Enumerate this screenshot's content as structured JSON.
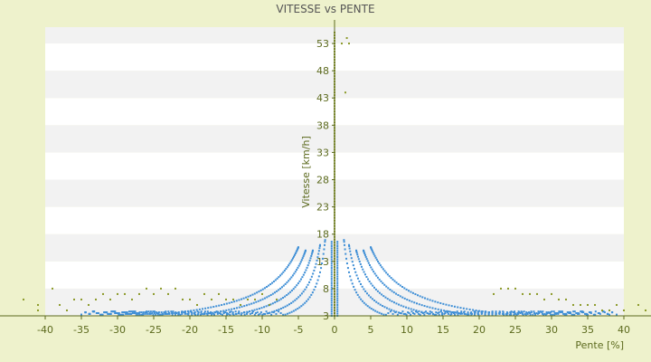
{
  "chart_data": {
    "type": "scatter",
    "title": "VITESSE vs PENTE",
    "xlabel": "Pente [%]",
    "ylabel": "Vitesse [km/h]",
    "xlim": [
      -40,
      40
    ],
    "ylim": [
      3,
      56
    ],
    "x_ticks": [
      "-40",
      "-35",
      "-30",
      "-25",
      "-20",
      "-15",
      "-10",
      "-5",
      "0",
      "5",
      "10",
      "15",
      "20",
      "25",
      "30",
      "35",
      "40"
    ],
    "y_ticks": [
      "3",
      "8",
      "13",
      "18",
      "23",
      "28",
      "33",
      "38",
      "43",
      "48",
      "53"
    ],
    "grid": "horizontal bands",
    "legend": "none",
    "colors": {
      "background": "#eef2cc",
      "plot_band_light": "#ffffff",
      "plot_band_dark": "#f2f2f2",
      "axis": "#5c6a1e",
      "series_blue": "#3f8fd6",
      "series_olive": "#8c9a2a"
    },
    "series": [
      {
        "color": "#3f8fd6",
        "curves": [
          {
            "k": 22,
            "xmin": 1.3,
            "xmax": 35,
            "sign": 1
          },
          {
            "k": 32,
            "xmin": 2.0,
            "xmax": 38,
            "sign": 1
          },
          {
            "k": 45,
            "xmin": 3.0,
            "xmax": 39,
            "sign": 1
          },
          {
            "k": 60,
            "xmin": 4.0,
            "xmax": 39,
            "sign": 1
          },
          {
            "k": 78,
            "xmin": 5.0,
            "xmax": 39,
            "sign": 1
          },
          {
            "k": 22,
            "xmin": 1.3,
            "xmax": 35,
            "sign": -1
          },
          {
            "k": 32,
            "xmin": 2.0,
            "xmax": 35,
            "sign": -1
          },
          {
            "k": 45,
            "xmin": 3.0,
            "xmax": 35,
            "sign": -1
          },
          {
            "k": 60,
            "xmin": 4.0,
            "xmax": 35,
            "sign": -1
          },
          {
            "k": 78,
            "xmin": 5.0,
            "xmax": 35,
            "sign": -1
          }
        ]
      },
      {
        "color": "#8c9a2a",
        "points": [
          [
            -43,
            6
          ],
          [
            -41,
            5
          ],
          [
            -41,
            4
          ],
          [
            -39,
            8
          ],
          [
            -38,
            5
          ],
          [
            -37,
            4
          ],
          [
            -36,
            6
          ],
          [
            -35,
            6
          ],
          [
            -34,
            5
          ],
          [
            -33,
            6
          ],
          [
            -32,
            7
          ],
          [
            -31,
            6
          ],
          [
            -30,
            7
          ],
          [
            -29,
            7
          ],
          [
            -28,
            6
          ],
          [
            -27,
            7
          ],
          [
            -26,
            8
          ],
          [
            -25,
            7
          ],
          [
            -24,
            8
          ],
          [
            -23,
            7
          ],
          [
            -22,
            8
          ],
          [
            -21,
            6
          ],
          [
            -20,
            6
          ],
          [
            -19,
            5
          ],
          [
            -18,
            7
          ],
          [
            -17,
            6
          ],
          [
            -16,
            7
          ],
          [
            -15,
            6
          ],
          [
            -14,
            6
          ],
          [
            -13,
            5
          ],
          [
            -12,
            6
          ],
          [
            -11,
            6
          ],
          [
            -10,
            7
          ],
          [
            -9,
            5
          ],
          [
            -8,
            6
          ],
          [
            1,
            53
          ],
          [
            1.5,
            44
          ],
          [
            1.7,
            54
          ],
          [
            2,
            53
          ],
          [
            22,
            7
          ],
          [
            23,
            8
          ],
          [
            24,
            8
          ],
          [
            25,
            8
          ],
          [
            26,
            7
          ],
          [
            27,
            7
          ],
          [
            28,
            7
          ],
          [
            29,
            6
          ],
          [
            30,
            7
          ],
          [
            31,
            6
          ],
          [
            32,
            6
          ],
          [
            33,
            5
          ],
          [
            34,
            5
          ],
          [
            35,
            5
          ],
          [
            36,
            5
          ],
          [
            37,
            4
          ],
          [
            38,
            4
          ],
          [
            39,
            5
          ],
          [
            40,
            4
          ],
          [
            42,
            5
          ],
          [
            43,
            4
          ]
        ]
      }
    ]
  }
}
